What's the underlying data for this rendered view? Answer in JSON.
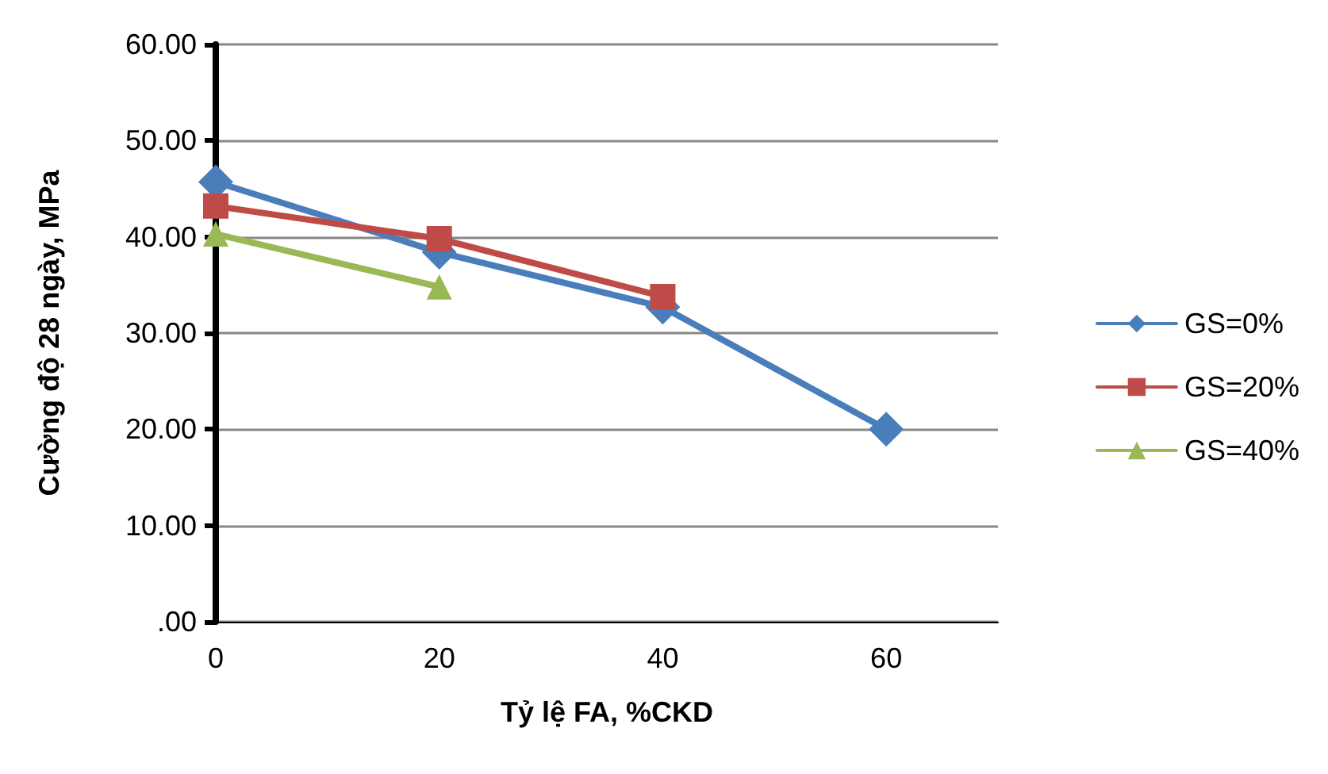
{
  "chart_data": {
    "type": "line",
    "xlabel": "Tỷ lệ FA, %CKD",
    "ylabel": "Cường độ 28 ngày, MPa",
    "x": [
      0,
      20,
      40,
      60
    ],
    "series": [
      {
        "name": "GS=0%",
        "color": "#4a7ebb",
        "marker": "diamond",
        "values": [
          45.7,
          38.4,
          32.7,
          20.0
        ]
      },
      {
        "name": "GS=20%",
        "color": "#be4b48",
        "marker": "square",
        "values": [
          43.2,
          39.8,
          33.8,
          null
        ]
      },
      {
        "name": "GS=40%",
        "color": "#98b954",
        "marker": "triangle",
        "values": [
          40.3,
          34.8,
          null,
          null
        ]
      }
    ],
    "xlim": [
      0,
      70
    ],
    "xticks": [
      0,
      20,
      40,
      60
    ],
    "ylim": [
      0,
      60
    ],
    "yticks": [
      {
        "value": 0,
        "label": ".00"
      },
      {
        "value": 10,
        "label": "10.00"
      },
      {
        "value": 20,
        "label": "20.00"
      },
      {
        "value": 30,
        "label": "30.00"
      },
      {
        "value": 40,
        "label": "40.00"
      },
      {
        "value": 50,
        "label": "50.00"
      },
      {
        "value": 60,
        "label": "60.00"
      }
    ],
    "grid": "y",
    "legend": "right",
    "line_style": "solid"
  }
}
